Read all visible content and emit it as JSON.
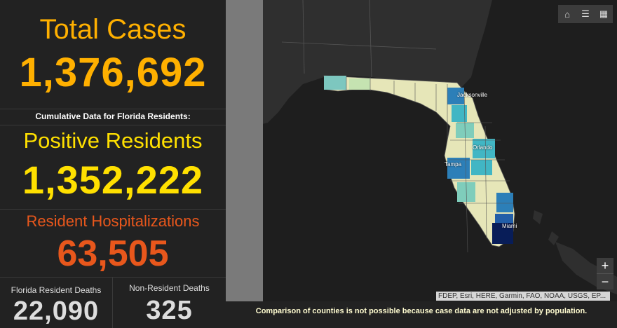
{
  "stats": {
    "total_cases_label": "Total Cases",
    "total_cases_value": "1,376,692",
    "cumulative_label": "Cumulative Data for Florida Residents:",
    "positive_residents_label": "Positive Residents",
    "positive_residents_value": "1,352,222",
    "hospitalizations_label": "Resident Hospitalizations",
    "hospitalizations_value": "63,505",
    "florida_deaths_label": "Florida Resident Deaths",
    "florida_deaths_value": "22,090",
    "nonresident_deaths_label": "Non-Resident Deaths",
    "nonresident_deaths_value": "325"
  },
  "map": {
    "toolbar": [
      {
        "name": "home-icon",
        "glyph": "⌂"
      },
      {
        "name": "legend-icon",
        "glyph": "☰"
      },
      {
        "name": "basemap-gallery-icon",
        "glyph": "▦"
      }
    ],
    "zoom_in_label": "+",
    "zoom_out_label": "−",
    "cities": [
      "Jacksonville",
      "Orlando",
      "Tampa",
      "Miami"
    ],
    "attribution": "FDEP, Esri, HERE, Garmin, FAO, NOAA, USGS, EP...",
    "footer_note": "Comparison of counties is not possible because case data are not adjusted by population."
  },
  "colors": {
    "total_cases": "#ffb000",
    "positive_residents": "#ffe000",
    "hospitalizations": "#e8571c",
    "deaths": "#dddddd",
    "background": "#222222",
    "map_background": "#1e1e1e"
  }
}
